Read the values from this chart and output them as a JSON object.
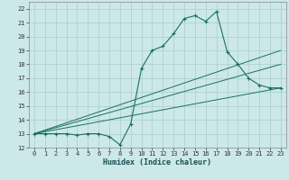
{
  "xlabel": "Humidex (Indice chaleur)",
  "background_color": "#cce8e8",
  "grid_color": "#aacece",
  "line_color": "#1a7060",
  "xlim": [
    -0.5,
    23.5
  ],
  "ylim": [
    12,
    22.5
  ],
  "xticks": [
    0,
    1,
    2,
    3,
    4,
    5,
    6,
    7,
    8,
    9,
    10,
    11,
    12,
    13,
    14,
    15,
    16,
    17,
    18,
    19,
    20,
    21,
    22,
    23
  ],
  "yticks": [
    12,
    13,
    14,
    15,
    16,
    17,
    18,
    19,
    20,
    21,
    22
  ],
  "series1_x": [
    0,
    1,
    2,
    3,
    4,
    5,
    6,
    7,
    8,
    9,
    10,
    11,
    12,
    13,
    14,
    15,
    16,
    17,
    18,
    19,
    20,
    21,
    22,
    23
  ],
  "series1_y": [
    13,
    13,
    13,
    13,
    12.9,
    13,
    13,
    12.8,
    12.2,
    13.7,
    17.7,
    19.0,
    19.3,
    20.2,
    21.3,
    21.5,
    21.1,
    21.8,
    18.9,
    18.0,
    17.0,
    16.5,
    16.3,
    16.3
  ],
  "series2_x": [
    0,
    23
  ],
  "series2_y": [
    13,
    19.0
  ],
  "series3_x": [
    0,
    23
  ],
  "series3_y": [
    13,
    18.0
  ],
  "series4_x": [
    0,
    23
  ],
  "series4_y": [
    13,
    16.3
  ]
}
